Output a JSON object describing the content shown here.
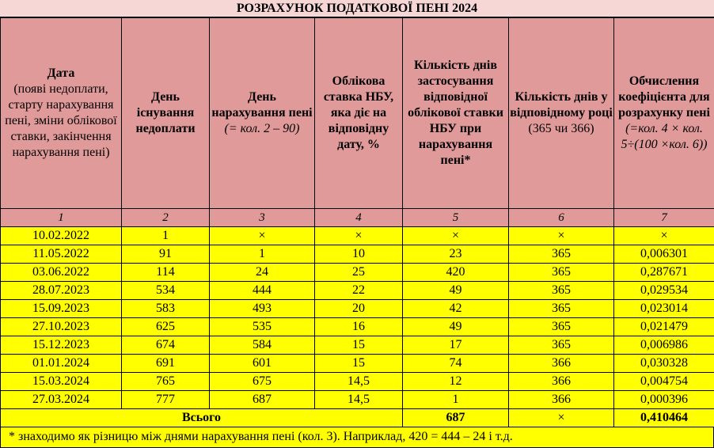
{
  "title": "РОЗРАХУНОК ПОДАТКОВОЇ ПЕНІ 2024",
  "headers": [
    {
      "bold": "Дата",
      "normal": "(появі недоплати, старту нарахування пені, зміни облікової ставки, закінчення нарахування пені)",
      "italic": ""
    },
    {
      "bold": "День існування недоплати",
      "normal": "",
      "italic": ""
    },
    {
      "bold": "День нарахування пені",
      "normal": "",
      "italic": "(= кол. 2 – 90)"
    },
    {
      "bold": "Облікова ставка НБУ, яка діє на відповідну дату, %",
      "normal": "",
      "italic": ""
    },
    {
      "bold": "Кількість днів застосування відповідної облікової ставки НБУ при нарахування пені*",
      "normal": "",
      "italic": ""
    },
    {
      "bold": "Кількість днів у відповідному році",
      "normal": "(365 чи 366)",
      "italic": ""
    },
    {
      "bold": "Обчислення коефіцієнта для розрахунку пені",
      "normal": "",
      "italic": "(=кол. 4 × кол. 5÷(100 ×кол. 6))"
    }
  ],
  "column_numbers": [
    "1",
    "2",
    "3",
    "4",
    "5",
    "6",
    "7"
  ],
  "rows": [
    [
      "10.02.2022",
      "1",
      "×",
      "×",
      "×",
      "×",
      "×"
    ],
    [
      "11.05.2022",
      "91",
      "1",
      "10",
      "23",
      "365",
      "0,006301"
    ],
    [
      "03.06.2022",
      "114",
      "24",
      "25",
      "420",
      "365",
      "0,287671"
    ],
    [
      "28.07.2023",
      "534",
      "444",
      "22",
      "49",
      "365",
      "0,029534"
    ],
    [
      "15.09.2023",
      "583",
      "493",
      "20",
      "42",
      "365",
      "0,023014"
    ],
    [
      "27.10.2023",
      "625",
      "535",
      "16",
      "49",
      "365",
      "0,021479"
    ],
    [
      "15.12.2023",
      "674",
      "584",
      "15",
      "17",
      "365",
      "0,006986"
    ],
    [
      "01.01.2024",
      "691",
      "601",
      "15",
      "74",
      "366",
      "0,030328"
    ],
    [
      "15.03.2024",
      "765",
      "675",
      "14,5",
      "12",
      "366",
      "0,004754"
    ],
    [
      "27.03.2024",
      "777",
      "687",
      "14,5",
      "1",
      "366",
      "0,000396"
    ]
  ],
  "total": {
    "label": "Всього",
    "days": "687",
    "year_days": "×",
    "coefficient": "0,410464"
  },
  "footnote": "* знаходимо як різницю між днями нарахування пені (кол. 3). Наприклад, 420 = 444 – 24 і т.д.",
  "colors": {
    "header_bg": "#e19a9a",
    "title_bg": "#f7d6d6",
    "row_bg": "#ffff00"
  }
}
